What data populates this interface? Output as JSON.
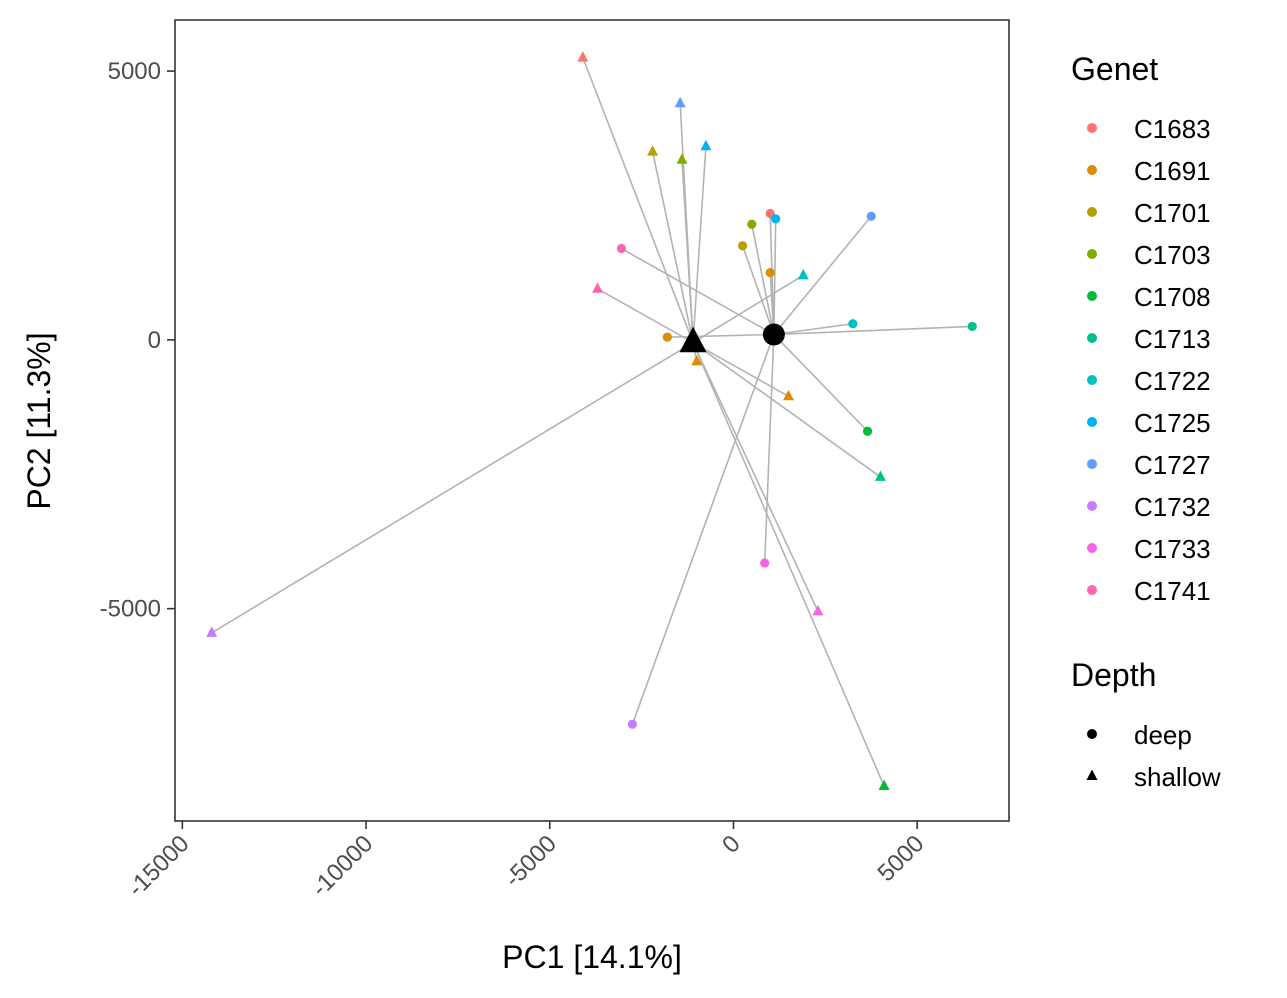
{
  "chart_data": {
    "type": "scatter",
    "xlabel": "PC1 [14.1%]",
    "ylabel": "PC2 [11.3%]",
    "xlim": [
      -15200,
      7500
    ],
    "ylim": [
      -8950,
      5950
    ],
    "x_ticks": [
      -15000,
      -10000,
      -5000,
      0,
      5000
    ],
    "x_tick_labels": [
      "-15000",
      "-10000",
      "-5000",
      "0",
      "5000"
    ],
    "y_ticks": [
      -5000,
      0,
      5000
    ],
    "y_tick_labels": [
      "-5000",
      "0",
      "5000"
    ],
    "grid": false,
    "legend_position": "right",
    "genet_legend": {
      "title": "Genet",
      "entries": [
        {
          "name": "C1683",
          "color": "#F8766D"
        },
        {
          "name": "C1691",
          "color": "#DE8C00"
        },
        {
          "name": "C1701",
          "color": "#B79F00"
        },
        {
          "name": "C1703",
          "color": "#7CAE00"
        },
        {
          "name": "C1708",
          "color": "#00BA38"
        },
        {
          "name": "C1713",
          "color": "#00C08B"
        },
        {
          "name": "C1722",
          "color": "#00BFC4"
        },
        {
          "name": "C1725",
          "color": "#00B4F0"
        },
        {
          "name": "C1727",
          "color": "#619CFF"
        },
        {
          "name": "C1732",
          "color": "#C77CFF"
        },
        {
          "name": "C1733",
          "color": "#F564E3"
        },
        {
          "name": "C1741",
          "color": "#FF64B0"
        }
      ]
    },
    "depth_legend": {
      "title": "Depth",
      "entries": [
        {
          "name": "deep",
          "shape": "circle"
        },
        {
          "name": "shallow",
          "shape": "triangle"
        }
      ]
    },
    "centroids": {
      "deep": {
        "x": 1100,
        "y": 100
      },
      "shallow": {
        "x": -1100,
        "y": -50
      }
    },
    "points": [
      {
        "genet": "C1683",
        "depth": "deep",
        "x": 1000,
        "y": 2350
      },
      {
        "genet": "C1683",
        "depth": "shallow",
        "x": -4100,
        "y": 5250
      },
      {
        "genet": "C1691",
        "depth": "deep",
        "x": -1800,
        "y": 50
      },
      {
        "genet": "C1691",
        "depth": "shallow",
        "x": -1000,
        "y": -400
      },
      {
        "genet": "C1691",
        "depth": "shallow",
        "x": 1500,
        "y": -1050
      },
      {
        "genet": "C1691",
        "depth": "deep",
        "x": 1000,
        "y": 1250
      },
      {
        "genet": "C1701",
        "depth": "deep",
        "x": 250,
        "y": 1750
      },
      {
        "genet": "C1701",
        "depth": "shallow",
        "x": -2200,
        "y": 3500
      },
      {
        "genet": "C1703",
        "depth": "deep",
        "x": 500,
        "y": 2150
      },
      {
        "genet": "C1703",
        "depth": "shallow",
        "x": -1400,
        "y": 3350
      },
      {
        "genet": "C1708",
        "depth": "deep",
        "x": 3650,
        "y": -1700
      },
      {
        "genet": "C1708",
        "depth": "shallow",
        "x": 4100,
        "y": -8300
      },
      {
        "genet": "C1713",
        "depth": "deep",
        "x": 6500,
        "y": 250
      },
      {
        "genet": "C1713",
        "depth": "shallow",
        "x": 4000,
        "y": -2550
      },
      {
        "genet": "C1722",
        "depth": "deep",
        "x": 3250,
        "y": 300
      },
      {
        "genet": "C1722",
        "depth": "shallow",
        "x": 1900,
        "y": 1200
      },
      {
        "genet": "C1725",
        "depth": "deep",
        "x": 1150,
        "y": 2250
      },
      {
        "genet": "C1725",
        "depth": "shallow",
        "x": -750,
        "y": 3600
      },
      {
        "genet": "C1727",
        "depth": "deep",
        "x": 3750,
        "y": 2300
      },
      {
        "genet": "C1727",
        "depth": "shallow",
        "x": -1450,
        "y": 4400
      },
      {
        "genet": "C1732",
        "depth": "deep",
        "x": -2750,
        "y": -7150
      },
      {
        "genet": "C1732",
        "depth": "shallow",
        "x": -14200,
        "y": -5450
      },
      {
        "genet": "C1733",
        "depth": "deep",
        "x": 850,
        "y": -4150
      },
      {
        "genet": "C1733",
        "depth": "shallow",
        "x": 2300,
        "y": -5050
      },
      {
        "genet": "C1741",
        "depth": "deep",
        "x": -3050,
        "y": 1700
      },
      {
        "genet": "C1741",
        "depth": "shallow",
        "x": -3700,
        "y": 950
      }
    ]
  }
}
